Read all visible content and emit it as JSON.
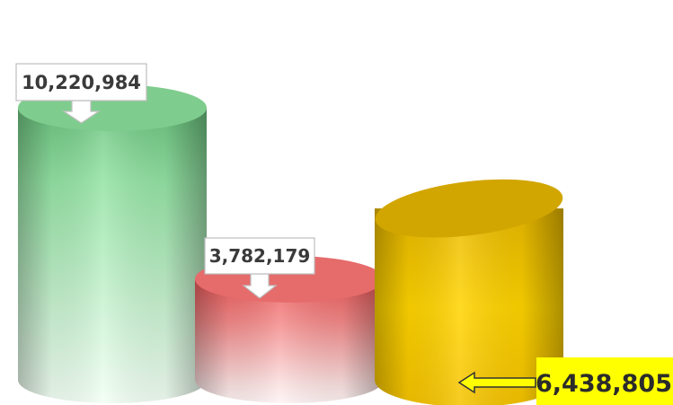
{
  "chart_data": {
    "type": "bar",
    "style": "3d-cylinder",
    "values": [
      10220984,
      3782179,
      6438805
    ],
    "value_labels": [
      "10,220,984",
      "3,782,179",
      "6,438,805"
    ],
    "colors": [
      "#8fe39f",
      "#f27b7b",
      "#f2c400"
    ],
    "highlight_color": "#ffff00",
    "title": "",
    "xlabel": "",
    "ylabel": "",
    "grid": false,
    "legend": "none"
  }
}
